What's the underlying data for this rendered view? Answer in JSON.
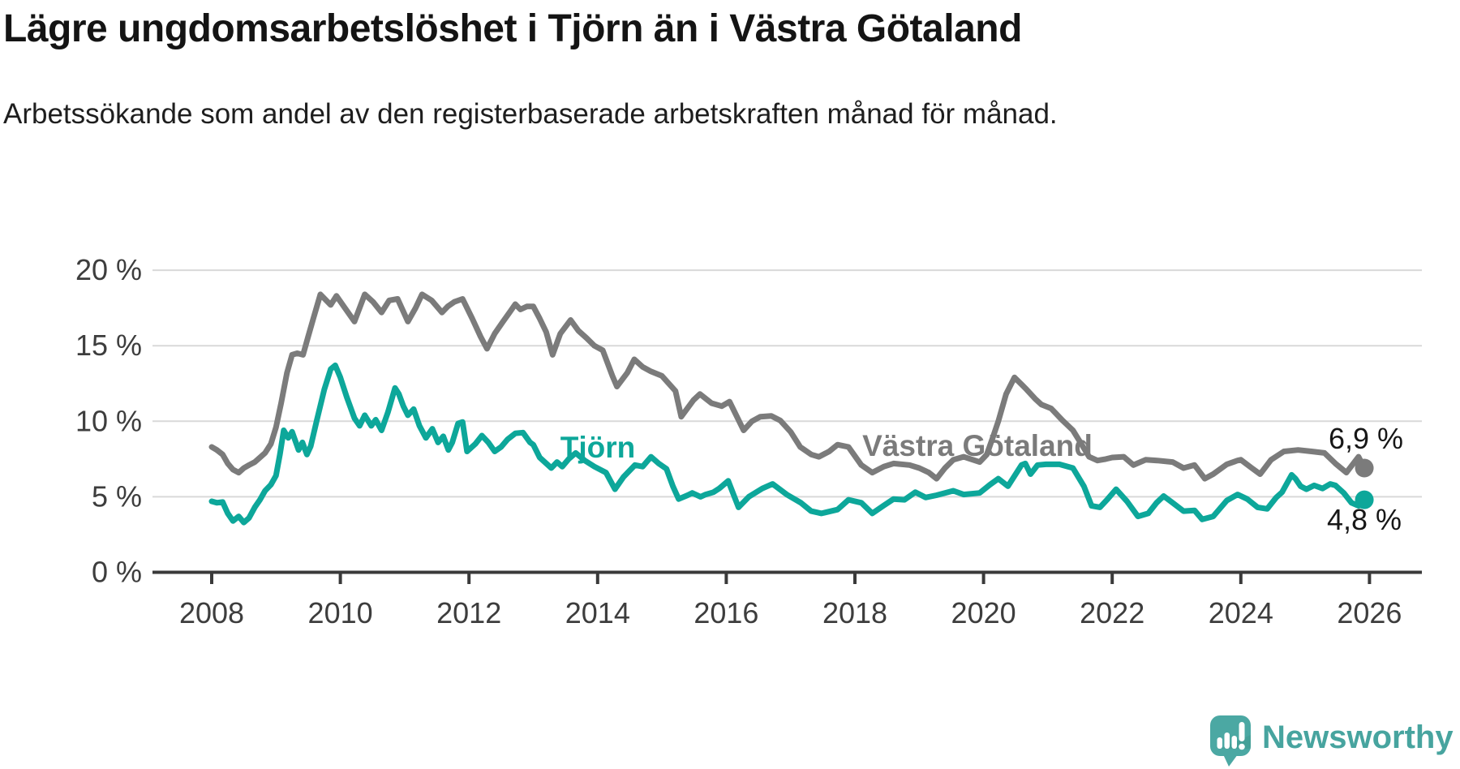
{
  "header": {
    "title": "Lägre ungdomsarbetslöshet i Tjörn än i Västra Götaland",
    "subtitle": "Arbetssökande som andel av den registerbaserade arbetskraften månad för månad."
  },
  "chart_data": {
    "type": "line",
    "unit": "%",
    "grid": "horizontal-only",
    "x_axis": {
      "ticks": [
        2008,
        2010,
        2012,
        2014,
        2016,
        2018,
        2020,
        2022,
        2024,
        2026
      ],
      "labels": [
        "2008",
        "2010",
        "2012",
        "2014",
        "2016",
        "2018",
        "2020",
        "2022",
        "2024",
        "2026"
      ],
      "range": [
        2007.1,
        2026.9
      ]
    },
    "y_axis": {
      "ticks": [
        0,
        5,
        10,
        15,
        20
      ],
      "labels": [
        "0 %",
        "5 %",
        "10 %",
        "15 %",
        "20 %"
      ],
      "range": [
        0,
        20
      ]
    },
    "colors": {
      "vastra_gotaland": "#7b7b7b",
      "tjorn": "#0da79a",
      "grid": "#d9d9d9",
      "axis": "#3a3a3a"
    },
    "series": [
      {
        "name": "Västra Götaland",
        "color": "#7b7b7b",
        "end_label": "6,9 %",
        "end_value": 6.9,
        "points": [
          [
            2008.0,
            8.3
          ],
          [
            2008.08,
            8.1
          ],
          [
            2008.17,
            7.8
          ],
          [
            2008.25,
            7.2
          ],
          [
            2008.33,
            6.8
          ],
          [
            2008.42,
            6.6
          ],
          [
            2008.5,
            6.9
          ],
          [
            2008.58,
            7.1
          ],
          [
            2008.67,
            7.3
          ],
          [
            2008.75,
            7.6
          ],
          [
            2008.83,
            7.9
          ],
          [
            2008.92,
            8.5
          ],
          [
            2009.0,
            9.6
          ],
          [
            2009.08,
            11.2
          ],
          [
            2009.17,
            13.2
          ],
          [
            2009.25,
            14.4
          ],
          [
            2009.33,
            14.5
          ],
          [
            2009.42,
            14.4
          ],
          [
            2009.5,
            15.6
          ],
          [
            2009.58,
            16.8
          ],
          [
            2009.69,
            18.4
          ],
          [
            2009.85,
            17.7
          ],
          [
            2009.94,
            18.3
          ],
          [
            2010.07,
            17.5
          ],
          [
            2010.22,
            16.6
          ],
          [
            2010.38,
            18.4
          ],
          [
            2010.51,
            17.9
          ],
          [
            2010.64,
            17.2
          ],
          [
            2010.76,
            18.0
          ],
          [
            2010.89,
            18.1
          ],
          [
            2011.05,
            16.6
          ],
          [
            2011.17,
            17.5
          ],
          [
            2011.27,
            18.4
          ],
          [
            2011.42,
            18.0
          ],
          [
            2011.58,
            17.2
          ],
          [
            2011.67,
            17.6
          ],
          [
            2011.77,
            17.9
          ],
          [
            2011.9,
            18.1
          ],
          [
            2012.05,
            16.8
          ],
          [
            2012.18,
            15.6
          ],
          [
            2012.28,
            14.8
          ],
          [
            2012.4,
            15.8
          ],
          [
            2012.53,
            16.6
          ],
          [
            2012.63,
            17.2
          ],
          [
            2012.72,
            17.75
          ],
          [
            2012.8,
            17.4
          ],
          [
            2012.9,
            17.6
          ],
          [
            2013.0,
            17.6
          ],
          [
            2013.1,
            16.8
          ],
          [
            2013.2,
            15.9
          ],
          [
            2013.3,
            14.4
          ],
          [
            2013.42,
            15.8
          ],
          [
            2013.58,
            16.7
          ],
          [
            2013.7,
            16.0
          ],
          [
            2013.83,
            15.5
          ],
          [
            2013.95,
            15.0
          ],
          [
            2014.08,
            14.7
          ],
          [
            2014.23,
            13.0
          ],
          [
            2014.3,
            12.3
          ],
          [
            2014.46,
            13.2
          ],
          [
            2014.57,
            14.1
          ],
          [
            2014.7,
            13.6
          ],
          [
            2014.83,
            13.3
          ],
          [
            2015.0,
            13.0
          ],
          [
            2015.21,
            12.0
          ],
          [
            2015.3,
            10.3
          ],
          [
            2015.49,
            11.4
          ],
          [
            2015.59,
            11.8
          ],
          [
            2015.77,
            11.2
          ],
          [
            2015.93,
            11.0
          ],
          [
            2016.05,
            11.3
          ],
          [
            2016.27,
            9.4
          ],
          [
            2016.4,
            10.0
          ],
          [
            2016.53,
            10.3
          ],
          [
            2016.7,
            10.35
          ],
          [
            2016.84,
            10.05
          ],
          [
            2017.0,
            9.3
          ],
          [
            2017.15,
            8.3
          ],
          [
            2017.32,
            7.8
          ],
          [
            2017.44,
            7.65
          ],
          [
            2017.6,
            8.0
          ],
          [
            2017.73,
            8.45
          ],
          [
            2017.9,
            8.3
          ],
          [
            2018.1,
            7.1
          ],
          [
            2018.27,
            6.6
          ],
          [
            2018.45,
            7.0
          ],
          [
            2018.6,
            7.2
          ],
          [
            2018.85,
            7.1
          ],
          [
            2019.0,
            6.9
          ],
          [
            2019.15,
            6.6
          ],
          [
            2019.27,
            6.2
          ],
          [
            2019.4,
            6.9
          ],
          [
            2019.53,
            7.45
          ],
          [
            2019.69,
            7.65
          ],
          [
            2019.8,
            7.5
          ],
          [
            2019.94,
            7.3
          ],
          [
            2020.05,
            7.8
          ],
          [
            2020.15,
            9.0
          ],
          [
            2020.23,
            10.0
          ],
          [
            2020.35,
            11.8
          ],
          [
            2020.48,
            12.9
          ],
          [
            2020.6,
            12.4
          ],
          [
            2020.67,
            12.1
          ],
          [
            2020.8,
            11.5
          ],
          [
            2020.9,
            11.1
          ],
          [
            2021.05,
            10.85
          ],
          [
            2021.23,
            10.05
          ],
          [
            2021.39,
            9.4
          ],
          [
            2021.52,
            8.5
          ],
          [
            2021.64,
            7.65
          ],
          [
            2021.77,
            7.4
          ],
          [
            2021.9,
            7.5
          ],
          [
            2022.0,
            7.6
          ],
          [
            2022.18,
            7.65
          ],
          [
            2022.33,
            7.1
          ],
          [
            2022.52,
            7.45
          ],
          [
            2022.7,
            7.4
          ],
          [
            2022.94,
            7.3
          ],
          [
            2023.11,
            6.9
          ],
          [
            2023.28,
            7.1
          ],
          [
            2023.44,
            6.2
          ],
          [
            2023.57,
            6.5
          ],
          [
            2023.78,
            7.15
          ],
          [
            2023.95,
            7.4
          ],
          [
            2024.0,
            7.45
          ],
          [
            2024.17,
            6.9
          ],
          [
            2024.3,
            6.5
          ],
          [
            2024.47,
            7.45
          ],
          [
            2024.67,
            8.0
          ],
          [
            2024.89,
            8.1
          ],
          [
            2025.1,
            8.0
          ],
          [
            2025.3,
            7.9
          ],
          [
            2025.47,
            7.2
          ],
          [
            2025.64,
            6.6
          ],
          [
            2025.83,
            7.65
          ],
          [
            2025.92,
            6.9
          ]
        ]
      },
      {
        "name": "Tjörn",
        "color": "#0da79a",
        "end_label": "4,8 %",
        "end_value": 4.8,
        "points": [
          [
            2008.0,
            4.7
          ],
          [
            2008.08,
            4.6
          ],
          [
            2008.17,
            4.65
          ],
          [
            2008.25,
            3.9
          ],
          [
            2008.33,
            3.4
          ],
          [
            2008.42,
            3.7
          ],
          [
            2008.5,
            3.3
          ],
          [
            2008.58,
            3.6
          ],
          [
            2008.67,
            4.3
          ],
          [
            2008.75,
            4.8
          ],
          [
            2008.83,
            5.4
          ],
          [
            2008.92,
            5.8
          ],
          [
            2009.0,
            6.4
          ],
          [
            2009.06,
            7.8
          ],
          [
            2009.12,
            9.4
          ],
          [
            2009.19,
            8.9
          ],
          [
            2009.25,
            9.3
          ],
          [
            2009.35,
            8.1
          ],
          [
            2009.41,
            8.6
          ],
          [
            2009.48,
            7.8
          ],
          [
            2009.54,
            8.35
          ],
          [
            2009.63,
            10.0
          ],
          [
            2009.75,
            12.1
          ],
          [
            2009.85,
            13.45
          ],
          [
            2009.92,
            13.7
          ],
          [
            2010.0,
            12.9
          ],
          [
            2010.1,
            11.6
          ],
          [
            2010.22,
            10.2
          ],
          [
            2010.3,
            9.7
          ],
          [
            2010.38,
            10.4
          ],
          [
            2010.48,
            9.7
          ],
          [
            2010.55,
            10.1
          ],
          [
            2010.64,
            9.4
          ],
          [
            2010.74,
            10.6
          ],
          [
            2010.85,
            12.2
          ],
          [
            2010.91,
            11.8
          ],
          [
            2010.98,
            11.0
          ],
          [
            2011.05,
            10.4
          ],
          [
            2011.14,
            10.8
          ],
          [
            2011.23,
            9.7
          ],
          [
            2011.33,
            8.9
          ],
          [
            2011.43,
            9.5
          ],
          [
            2011.52,
            8.6
          ],
          [
            2011.6,
            9.0
          ],
          [
            2011.68,
            8.1
          ],
          [
            2011.74,
            8.6
          ],
          [
            2011.83,
            9.85
          ],
          [
            2011.9,
            9.95
          ],
          [
            2011.97,
            8.0
          ],
          [
            2012.1,
            8.5
          ],
          [
            2012.2,
            9.05
          ],
          [
            2012.3,
            8.6
          ],
          [
            2012.4,
            8.0
          ],
          [
            2012.5,
            8.3
          ],
          [
            2012.6,
            8.8
          ],
          [
            2012.72,
            9.2
          ],
          [
            2012.84,
            9.25
          ],
          [
            2012.95,
            8.6
          ],
          [
            2013.0,
            8.45
          ],
          [
            2013.1,
            7.6
          ],
          [
            2013.28,
            6.9
          ],
          [
            2013.37,
            7.3
          ],
          [
            2013.45,
            7.0
          ],
          [
            2013.55,
            7.5
          ],
          [
            2013.66,
            7.9
          ],
          [
            2013.8,
            7.4
          ],
          [
            2013.95,
            7.0
          ],
          [
            2014.13,
            6.6
          ],
          [
            2014.27,
            5.5
          ],
          [
            2014.4,
            6.3
          ],
          [
            2014.58,
            7.1
          ],
          [
            2014.7,
            7.0
          ],
          [
            2014.83,
            7.65
          ],
          [
            2014.95,
            7.2
          ],
          [
            2015.07,
            6.85
          ],
          [
            2015.17,
            5.7
          ],
          [
            2015.26,
            4.85
          ],
          [
            2015.4,
            5.1
          ],
          [
            2015.47,
            5.25
          ],
          [
            2015.6,
            5.0
          ],
          [
            2015.68,
            5.15
          ],
          [
            2015.8,
            5.3
          ],
          [
            2015.89,
            5.55
          ],
          [
            2016.03,
            6.05
          ],
          [
            2016.19,
            4.3
          ],
          [
            2016.35,
            5.0
          ],
          [
            2016.56,
            5.55
          ],
          [
            2016.72,
            5.85
          ],
          [
            2016.94,
            5.15
          ],
          [
            2017.16,
            4.6
          ],
          [
            2017.32,
            4.05
          ],
          [
            2017.48,
            3.9
          ],
          [
            2017.73,
            4.15
          ],
          [
            2017.9,
            4.8
          ],
          [
            2018.1,
            4.6
          ],
          [
            2018.27,
            3.9
          ],
          [
            2018.44,
            4.4
          ],
          [
            2018.6,
            4.85
          ],
          [
            2018.77,
            4.8
          ],
          [
            2018.94,
            5.3
          ],
          [
            2019.1,
            4.95
          ],
          [
            2019.27,
            5.1
          ],
          [
            2019.53,
            5.4
          ],
          [
            2019.69,
            5.15
          ],
          [
            2019.94,
            5.25
          ],
          [
            2020.1,
            5.8
          ],
          [
            2020.23,
            6.2
          ],
          [
            2020.38,
            5.7
          ],
          [
            2020.59,
            7.1
          ],
          [
            2020.65,
            7.2
          ],
          [
            2020.73,
            6.5
          ],
          [
            2020.84,
            7.1
          ],
          [
            2020.97,
            7.15
          ],
          [
            2021.18,
            7.15
          ],
          [
            2021.39,
            6.9
          ],
          [
            2021.56,
            5.7
          ],
          [
            2021.68,
            4.4
          ],
          [
            2021.81,
            4.3
          ],
          [
            2021.93,
            4.85
          ],
          [
            2022.06,
            5.5
          ],
          [
            2022.23,
            4.7
          ],
          [
            2022.4,
            3.7
          ],
          [
            2022.56,
            3.9
          ],
          [
            2022.69,
            4.6
          ],
          [
            2022.8,
            5.05
          ],
          [
            2022.94,
            4.6
          ],
          [
            2023.11,
            4.05
          ],
          [
            2023.28,
            4.1
          ],
          [
            2023.4,
            3.5
          ],
          [
            2023.57,
            3.7
          ],
          [
            2023.78,
            4.75
          ],
          [
            2023.95,
            5.15
          ],
          [
            2024.1,
            4.85
          ],
          [
            2024.26,
            4.3
          ],
          [
            2024.41,
            4.2
          ],
          [
            2024.55,
            4.95
          ],
          [
            2024.64,
            5.3
          ],
          [
            2024.79,
            6.45
          ],
          [
            2024.85,
            6.2
          ],
          [
            2024.93,
            5.7
          ],
          [
            2025.02,
            5.5
          ],
          [
            2025.14,
            5.75
          ],
          [
            2025.27,
            5.55
          ],
          [
            2025.39,
            5.85
          ],
          [
            2025.47,
            5.75
          ],
          [
            2025.6,
            5.25
          ],
          [
            2025.72,
            4.6
          ],
          [
            2025.83,
            4.4
          ],
          [
            2025.92,
            4.8
          ]
        ]
      }
    ]
  },
  "branding": {
    "logo_text": "Newsworthy",
    "logo_color": "#4ba8a3",
    "logo_icon": "speech-bubble-bar-chart-exclamation"
  }
}
